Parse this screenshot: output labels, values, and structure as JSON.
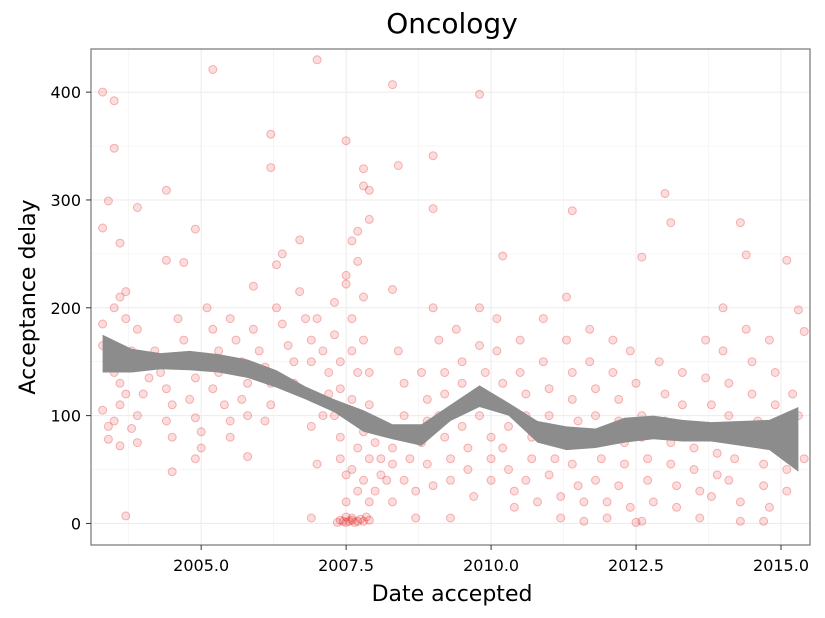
{
  "chart_data": {
    "type": "scatter",
    "title": "Oncology",
    "xlabel": "Date accepted",
    "ylabel": "Acceptance delay",
    "xlim": [
      2003.1,
      2015.5
    ],
    "ylim": [
      -20,
      440
    ],
    "xticks": [
      2005.0,
      2007.5,
      2010.0,
      2012.5,
      2015.0
    ],
    "xtick_labels": [
      "2005.0",
      "2007.5",
      "2010.0",
      "2012.5",
      "2015.0"
    ],
    "yticks": [
      0,
      100,
      200,
      300,
      400
    ],
    "ytick_labels": [
      "0",
      "100",
      "200",
      "300",
      "400"
    ],
    "grid": true,
    "point_color": "#e41a1c",
    "point_opacity": 0.15,
    "smooth_band_color": "#8c8c8c",
    "points": [
      [
        2003.3,
        400
      ],
      [
        2003.5,
        392
      ],
      [
        2003.5,
        348
      ],
      [
        2003.4,
        299
      ],
      [
        2003.3,
        274
      ],
      [
        2003.6,
        260
      ],
      [
        2003.9,
        293
      ],
      [
        2004.4,
        309
      ],
      [
        2005.2,
        421
      ],
      [
        2007.0,
        430
      ],
      [
        2006.2,
        361
      ],
      [
        2006.2,
        330
      ],
      [
        2007.5,
        355
      ],
      [
        2007.8,
        329
      ],
      [
        2007.8,
        313
      ],
      [
        2007.9,
        309
      ],
      [
        2008.3,
        407
      ],
      [
        2008.4,
        332
      ],
      [
        2009.0,
        341
      ],
      [
        2009.8,
        398
      ],
      [
        2009.0,
        292
      ],
      [
        2011.4,
        290
      ],
      [
        2013.0,
        306
      ],
      [
        2013.1,
        279
      ],
      [
        2014.3,
        279
      ],
      [
        2012.6,
        247
      ],
      [
        2014.4,
        249
      ],
      [
        2015.1,
        244
      ],
      [
        2010.2,
        248
      ],
      [
        2008.3,
        217
      ],
      [
        2007.9,
        282
      ],
      [
        2007.7,
        271
      ],
      [
        2007.7,
        243
      ],
      [
        2007.6,
        262
      ],
      [
        2007.5,
        230
      ],
      [
        2007.5,
        222
      ],
      [
        2006.7,
        263
      ],
      [
        2006.4,
        250
      ],
      [
        2006.3,
        240
      ],
      [
        2005.9,
        220
      ],
      [
        2004.9,
        273
      ],
      [
        2004.7,
        242
      ],
      [
        2004.4,
        244
      ],
      [
        2003.7,
        215
      ],
      [
        2003.6,
        210
      ],
      [
        2003.5,
        200
      ],
      [
        2003.7,
        190
      ],
      [
        2003.3,
        185
      ],
      [
        2003.3,
        165
      ],
      [
        2003.4,
        150
      ],
      [
        2003.5,
        140
      ],
      [
        2003.6,
        130
      ],
      [
        2003.7,
        120
      ],
      [
        2003.6,
        110
      ],
      [
        2003.5,
        95
      ],
      [
        2003.4,
        90
      ],
      [
        2003.4,
        78
      ],
      [
        2003.3,
        105
      ],
      [
        2003.9,
        180
      ],
      [
        2003.8,
        160
      ],
      [
        2004.0,
        150
      ],
      [
        2004.1,
        135
      ],
      [
        2004.0,
        120
      ],
      [
        2003.9,
        100
      ],
      [
        2003.8,
        88
      ],
      [
        2003.9,
        75
      ],
      [
        2003.6,
        72
      ],
      [
        2003.7,
        7
      ],
      [
        2004.2,
        160
      ],
      [
        2004.3,
        140
      ],
      [
        2004.4,
        125
      ],
      [
        2004.5,
        110
      ],
      [
        2004.4,
        95
      ],
      [
        2004.5,
        80
      ],
      [
        2004.5,
        48
      ],
      [
        2004.6,
        190
      ],
      [
        2004.7,
        170
      ],
      [
        2004.8,
        150
      ],
      [
        2004.9,
        135
      ],
      [
        2004.8,
        115
      ],
      [
        2004.9,
        98
      ],
      [
        2005.0,
        85
      ],
      [
        2005.0,
        70
      ],
      [
        2004.9,
        60
      ],
      [
        2005.1,
        200
      ],
      [
        2005.2,
        180
      ],
      [
        2005.3,
        160
      ],
      [
        2005.3,
        140
      ],
      [
        2005.2,
        125
      ],
      [
        2005.4,
        110
      ],
      [
        2005.5,
        95
      ],
      [
        2005.5,
        80
      ],
      [
        2005.5,
        190
      ],
      [
        2005.6,
        170
      ],
      [
        2005.7,
        150
      ],
      [
        2005.8,
        130
      ],
      [
        2005.7,
        115
      ],
      [
        2005.8,
        100
      ],
      [
        2005.8,
        62
      ],
      [
        2005.9,
        180
      ],
      [
        2006.0,
        160
      ],
      [
        2006.1,
        145
      ],
      [
        2006.2,
        130
      ],
      [
        2006.2,
        110
      ],
      [
        2006.1,
        95
      ],
      [
        2006.3,
        200
      ],
      [
        2006.4,
        185
      ],
      [
        2006.5,
        165
      ],
      [
        2006.6,
        150
      ],
      [
        2006.6,
        130
      ],
      [
        2006.7,
        215
      ],
      [
        2006.8,
        190
      ],
      [
        2006.9,
        170
      ],
      [
        2006.9,
        150
      ],
      [
        2006.8,
        120
      ],
      [
        2006.9,
        90
      ],
      [
        2007.0,
        55
      ],
      [
        2007.0,
        190
      ],
      [
        2007.1,
        160
      ],
      [
        2007.2,
        140
      ],
      [
        2007.2,
        120
      ],
      [
        2007.1,
        100
      ],
      [
        2006.9,
        5
      ],
      [
        2007.3,
        205
      ],
      [
        2007.3,
        175
      ],
      [
        2007.4,
        150
      ],
      [
        2007.4,
        125
      ],
      [
        2007.3,
        100
      ],
      [
        2007.4,
        80
      ],
      [
        2007.4,
        60
      ],
      [
        2007.5,
        45
      ],
      [
        2007.5,
        20
      ],
      [
        2007.6,
        190
      ],
      [
        2007.6,
        160
      ],
      [
        2007.7,
        140
      ],
      [
        2007.6,
        115
      ],
      [
        2007.7,
        95
      ],
      [
        2007.7,
        70
      ],
      [
        2007.6,
        50
      ],
      [
        2007.7,
        30
      ],
      [
        2007.8,
        210
      ],
      [
        2007.8,
        170
      ],
      [
        2007.9,
        140
      ],
      [
        2007.9,
        110
      ],
      [
        2007.8,
        85
      ],
      [
        2007.9,
        60
      ],
      [
        2007.8,
        40
      ],
      [
        2007.9,
        20
      ],
      [
        2007.4,
        3
      ],
      [
        2007.45,
        2
      ],
      [
        2007.5,
        1
      ],
      [
        2007.55,
        2
      ],
      [
        2007.6,
        3
      ],
      [
        2007.65,
        1
      ],
      [
        2007.7,
        2
      ],
      [
        2007.75,
        4
      ],
      [
        2007.5,
        6
      ],
      [
        2007.6,
        5
      ],
      [
        2007.35,
        1
      ],
      [
        2007.8,
        2
      ],
      [
        2007.85,
        6
      ],
      [
        2007.9,
        3
      ],
      [
        2008.0,
        75
      ],
      [
        2008.1,
        60
      ],
      [
        2008.1,
        45
      ],
      [
        2008.0,
        30
      ],
      [
        2008.2,
        90
      ],
      [
        2008.3,
        70
      ],
      [
        2008.3,
        55
      ],
      [
        2008.2,
        40
      ],
      [
        2008.3,
        20
      ],
      [
        2008.4,
        160
      ],
      [
        2008.5,
        130
      ],
      [
        2008.5,
        100
      ],
      [
        2008.6,
        80
      ],
      [
        2008.6,
        60
      ],
      [
        2008.5,
        40
      ],
      [
        2008.7,
        30
      ],
      [
        2008.7,
        5
      ],
      [
        2008.8,
        140
      ],
      [
        2008.9,
        115
      ],
      [
        2008.9,
        95
      ],
      [
        2008.8,
        75
      ],
      [
        2008.9,
        55
      ],
      [
        2009.0,
        35
      ],
      [
        2009.0,
        200
      ],
      [
        2009.1,
        170
      ],
      [
        2009.2,
        140
      ],
      [
        2009.2,
        120
      ],
      [
        2009.1,
        100
      ],
      [
        2009.2,
        80
      ],
      [
        2009.3,
        60
      ],
      [
        2009.3,
        40
      ],
      [
        2009.3,
        5
      ],
      [
        2009.4,
        180
      ],
      [
        2009.5,
        150
      ],
      [
        2009.5,
        130
      ],
      [
        2009.6,
        110
      ],
      [
        2009.5,
        90
      ],
      [
        2009.6,
        70
      ],
      [
        2009.6,
        50
      ],
      [
        2009.7,
        25
      ],
      [
        2009.8,
        200
      ],
      [
        2009.8,
        165
      ],
      [
        2009.9,
        140
      ],
      [
        2009.9,
        120
      ],
      [
        2009.8,
        100
      ],
      [
        2010.0,
        80
      ],
      [
        2010.0,
        60
      ],
      [
        2010.0,
        40
      ],
      [
        2010.1,
        190
      ],
      [
        2010.1,
        160
      ],
      [
        2010.2,
        130
      ],
      [
        2010.2,
        110
      ],
      [
        2010.3,
        90
      ],
      [
        2010.2,
        70
      ],
      [
        2010.3,
        50
      ],
      [
        2010.4,
        30
      ],
      [
        2010.4,
        15
      ],
      [
        2010.5,
        170
      ],
      [
        2010.5,
        140
      ],
      [
        2010.6,
        120
      ],
      [
        2010.6,
        100
      ],
      [
        2010.7,
        80
      ],
      [
        2010.7,
        60
      ],
      [
        2010.6,
        40
      ],
      [
        2010.8,
        20
      ],
      [
        2010.9,
        190
      ],
      [
        2010.9,
        150
      ],
      [
        2011.0,
        125
      ],
      [
        2011.0,
        100
      ],
      [
        2011.1,
        80
      ],
      [
        2011.1,
        60
      ],
      [
        2011.0,
        45
      ],
      [
        2011.2,
        25
      ],
      [
        2011.2,
        5
      ],
      [
        2011.3,
        210
      ],
      [
        2011.3,
        170
      ],
      [
        2011.4,
        140
      ],
      [
        2011.4,
        115
      ],
      [
        2011.5,
        95
      ],
      [
        2011.5,
        75
      ],
      [
        2011.4,
        55
      ],
      [
        2011.5,
        35
      ],
      [
        2011.6,
        20
      ],
      [
        2011.6,
        2
      ],
      [
        2011.7,
        180
      ],
      [
        2011.7,
        150
      ],
      [
        2011.8,
        125
      ],
      [
        2011.8,
        100
      ],
      [
        2011.9,
        80
      ],
      [
        2011.9,
        60
      ],
      [
        2011.8,
        40
      ],
      [
        2012.0,
        20
      ],
      [
        2012.0,
        5
      ],
      [
        2012.1,
        170
      ],
      [
        2012.1,
        140
      ],
      [
        2012.2,
        115
      ],
      [
        2012.2,
        95
      ],
      [
        2012.3,
        75
      ],
      [
        2012.3,
        55
      ],
      [
        2012.2,
        35
      ],
      [
        2012.4,
        15
      ],
      [
        2012.5,
        1
      ],
      [
        2012.6,
        2
      ],
      [
        2012.4,
        160
      ],
      [
        2012.5,
        130
      ],
      [
        2012.6,
        100
      ],
      [
        2012.6,
        80
      ],
      [
        2012.7,
        60
      ],
      [
        2012.7,
        40
      ],
      [
        2012.8,
        20
      ],
      [
        2012.9,
        150
      ],
      [
        2013.0,
        120
      ],
      [
        2013.0,
        95
      ],
      [
        2013.1,
        75
      ],
      [
        2013.1,
        55
      ],
      [
        2013.2,
        35
      ],
      [
        2013.2,
        15
      ],
      [
        2013.3,
        140
      ],
      [
        2013.3,
        110
      ],
      [
        2013.4,
        90
      ],
      [
        2013.5,
        70
      ],
      [
        2013.5,
        50
      ],
      [
        2013.6,
        30
      ],
      [
        2013.6,
        5
      ],
      [
        2013.7,
        170
      ],
      [
        2013.7,
        135
      ],
      [
        2013.8,
        110
      ],
      [
        2013.8,
        85
      ],
      [
        2013.9,
        65
      ],
      [
        2013.9,
        45
      ],
      [
        2013.8,
        25
      ],
      [
        2014.0,
        200
      ],
      [
        2014.0,
        160
      ],
      [
        2014.1,
        130
      ],
      [
        2014.1,
        100
      ],
      [
        2014.2,
        80
      ],
      [
        2014.2,
        60
      ],
      [
        2014.1,
        40
      ],
      [
        2014.3,
        20
      ],
      [
        2014.3,
        2
      ],
      [
        2014.4,
        180
      ],
      [
        2014.5,
        150
      ],
      [
        2014.5,
        120
      ],
      [
        2014.6,
        95
      ],
      [
        2014.6,
        75
      ],
      [
        2014.7,
        55
      ],
      [
        2014.7,
        35
      ],
      [
        2014.8,
        15
      ],
      [
        2014.8,
        170
      ],
      [
        2014.9,
        140
      ],
      [
        2014.9,
        110
      ],
      [
        2015.0,
        90
      ],
      [
        2015.0,
        70
      ],
      [
        2015.1,
        50
      ],
      [
        2015.1,
        30
      ],
      [
        2014.7,
        2
      ],
      [
        2015.2,
        120
      ],
      [
        2015.3,
        100
      ],
      [
        2015.3,
        198
      ],
      [
        2015.4,
        178
      ],
      [
        2015.4,
        60
      ]
    ],
    "smooth_band": {
      "x": [
        2003.3,
        2003.8,
        2004.3,
        2004.8,
        2005.3,
        2005.8,
        2006.3,
        2006.8,
        2007.3,
        2007.8,
        2008.3,
        2008.8,
        2009.3,
        2009.8,
        2010.3,
        2010.8,
        2011.3,
        2011.8,
        2012.3,
        2012.8,
        2013.3,
        2013.8,
        2014.3,
        2014.8,
        2015.3
      ],
      "upper": [
        175,
        162,
        158,
        160,
        157,
        152,
        142,
        127,
        115,
        105,
        92,
        92,
        110,
        128,
        112,
        95,
        90,
        88,
        98,
        100,
        96,
        94,
        95,
        96,
        108
      ],
      "lower": [
        140,
        140,
        143,
        142,
        140,
        135,
        126,
        115,
        103,
        85,
        78,
        72,
        95,
        108,
        100,
        75,
        68,
        70,
        75,
        78,
        76,
        76,
        72,
        68,
        48
      ]
    }
  }
}
